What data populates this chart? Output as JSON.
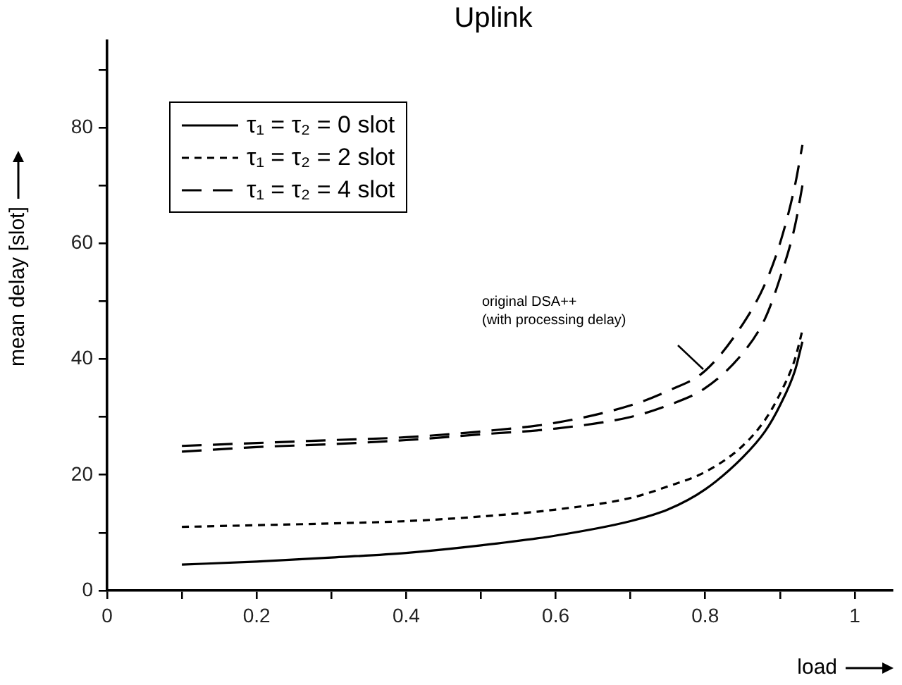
{
  "chart_data": {
    "type": "line",
    "title": "Uplink",
    "xlabel": "load",
    "ylabel": "mean delay [slot]",
    "x": [
      0.1,
      0.2,
      0.3,
      0.4,
      0.5,
      0.6,
      0.7,
      0.75,
      0.8,
      0.85,
      0.88,
      0.9,
      0.92,
      0.93
    ],
    "series": [
      {
        "name": "τ₁ = τ₂ = 0 slot",
        "color": "#000000",
        "line_style": "solid",
        "values": [
          4.5,
          5,
          5.7,
          6.5,
          7.8,
          9.5,
          12,
          14,
          17.5,
          23,
          27.5,
          32,
          38,
          43
        ]
      },
      {
        "name": "τ₁ = τ₂ = 2 slot",
        "color": "#000000",
        "line_style": "dotted",
        "values": [
          11,
          11.3,
          11.6,
          12,
          12.8,
          14,
          16,
          18,
          20.5,
          25,
          29.5,
          34,
          40,
          45
        ]
      },
      {
        "name": "τ₁ = τ₂ = 4 slot",
        "color": "#000000",
        "line_style": "dashed",
        "values": [
          24,
          24.8,
          25.3,
          26,
          27,
          28,
          30,
          32,
          35,
          41,
          47,
          54,
          63,
          70
        ]
      },
      {
        "color": "#000000",
        "line_style": "dashed",
        "values": [
          25,
          25.5,
          26,
          26.5,
          27.5,
          29,
          32,
          34.5,
          38,
          46,
          53,
          60,
          70,
          77
        ]
      }
    ],
    "xlim": [
      0,
      1.05
    ],
    "ylim": [
      0,
      95
    ],
    "xticks": [
      0,
      {
        "value": 0.1,
        "label": null
      },
      0.2,
      {
        "value": 0.3,
        "label": null
      },
      0.4,
      {
        "value": 0.5,
        "label": null
      },
      0.6,
      {
        "value": 0.7,
        "label": null
      },
      0.8,
      {
        "value": 0.9,
        "label": null
      },
      1
    ],
    "yticks": [
      0,
      {
        "value": 10,
        "label": null
      },
      20,
      {
        "value": 30,
        "label": null
      },
      40,
      {
        "value": 50,
        "label": null
      },
      60,
      {
        "value": 70,
        "label": null
      },
      80,
      {
        "value": 90,
        "label": null
      }
    ],
    "grid": false,
    "legend": "top left",
    "marker": "none",
    "annotations": [
      "original DSA++\n(with processing delay)"
    ]
  }
}
